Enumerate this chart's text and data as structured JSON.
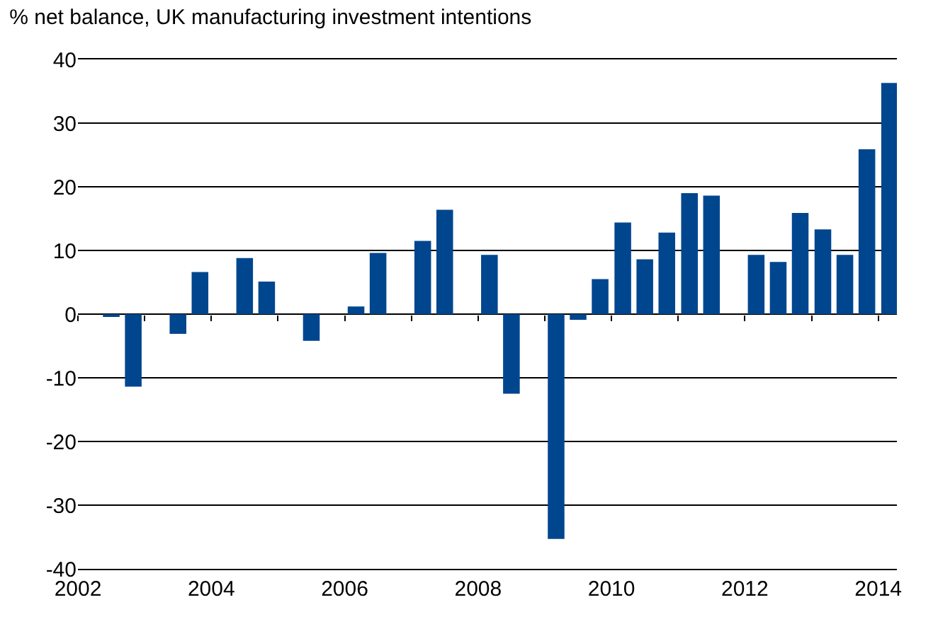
{
  "chart_data": {
    "type": "bar",
    "title": "% net balance, UK manufacturing investment intentions",
    "x": [
      2002.5,
      2002.83,
      2003.5,
      2003.83,
      2004.5,
      2004.83,
      2005.5,
      2006.17,
      2006.5,
      2007.17,
      2007.5,
      2008.17,
      2008.5,
      2009.17,
      2009.5,
      2009.83,
      2010.17,
      2010.5,
      2010.83,
      2011.17,
      2011.5,
      2012.17,
      2012.5,
      2012.83,
      2013.17,
      2013.5,
      2013.83,
      2014.17
    ],
    "values": [
      -0.4,
      -11.4,
      -3.1,
      6.6,
      8.8,
      5.1,
      -4.2,
      1.2,
      9.6,
      11.5,
      16.4,
      9.3,
      -12.5,
      -35.3,
      -0.9,
      5.5,
      14.4,
      8.6,
      12.8,
      19.0,
      18.6,
      9.3,
      8.2,
      15.9,
      13.3,
      9.3,
      25.9,
      36.3
    ],
    "color": "#00468e",
    "xlim": [
      2002,
      2014.28
    ],
    "xticks": [
      2002,
      {
        "value": 2003,
        "label": null
      },
      2004,
      {
        "value": 2005,
        "label": null
      },
      2006,
      {
        "value": 2007,
        "label": null
      },
      2008,
      {
        "value": 2009,
        "label": null
      },
      2010,
      {
        "value": 2011,
        "label": null
      },
      2012,
      {
        "value": 2013,
        "label": null
      },
      2014
    ],
    "ylim": [
      -40,
      40
    ],
    "yticks": [
      -40,
      -30,
      -20,
      -10,
      0,
      10,
      20,
      30,
      40
    ],
    "grid": "y"
  }
}
